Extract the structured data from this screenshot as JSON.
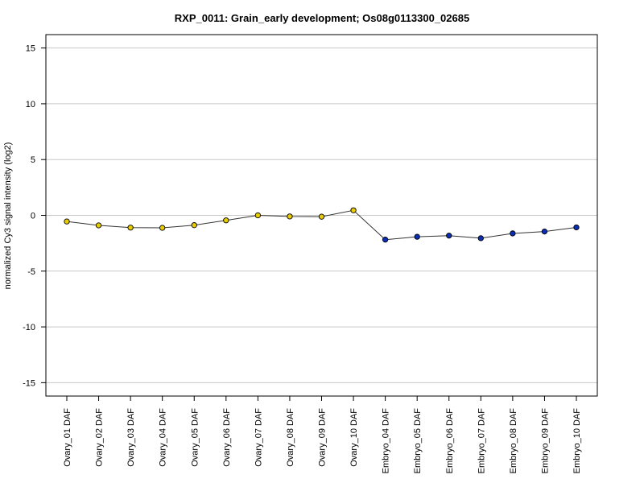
{
  "chart_data": {
    "type": "line",
    "title": "RXP_0011: Grain_early development; Os08g0113300_02685",
    "xlabel": "",
    "ylabel": "normalized Cy3 signal intensity (log2)",
    "ylim": [
      -16.2,
      16.2
    ],
    "yticks": [
      15,
      10,
      5,
      0,
      -5,
      -10,
      -15
    ],
    "ytick_labels": [
      "15",
      "10",
      "5",
      "0",
      "-5",
      "-10",
      "-15"
    ],
    "grid": "horizontal",
    "categories": [
      "Ovary_01 DAF",
      "Ovary_02 DAF",
      "Ovary_03 DAF",
      "Ovary_04 DAF",
      "Ovary_05 DAF",
      "Ovary_06 DAF",
      "Ovary_07 DAF",
      "Ovary_08 DAF",
      "Ovary_09 DAF",
      "Ovary_10 DAF",
      "Embryo_04 DAF",
      "Embryo_05 DAF",
      "Embryo_06 DAF",
      "Embryo_07 DAF",
      "Embryo_08 DAF",
      "Embryo_09 DAF",
      "Embryo_10 DAF"
    ],
    "values": [
      -0.55,
      -0.9,
      -1.1,
      -1.12,
      -0.88,
      -0.45,
      0.0,
      -0.1,
      -0.12,
      0.45,
      -2.18,
      -1.92,
      -1.82,
      -2.05,
      -1.62,
      -1.45,
      -1.08
    ],
    "point_colors": [
      "#e8cc00",
      "#e8cc00",
      "#e8cc00",
      "#e8cc00",
      "#e8cc00",
      "#e8cc00",
      "#e8cc00",
      "#e8cc00",
      "#e8cc00",
      "#e8cc00",
      "#0a2fb5",
      "#0a2fb5",
      "#0a2fb5",
      "#0a2fb5",
      "#0a2fb5",
      "#0a2fb5",
      "#0a2fb5"
    ],
    "line_color": "#333333",
    "grid_color": "#c8c8c8"
  }
}
